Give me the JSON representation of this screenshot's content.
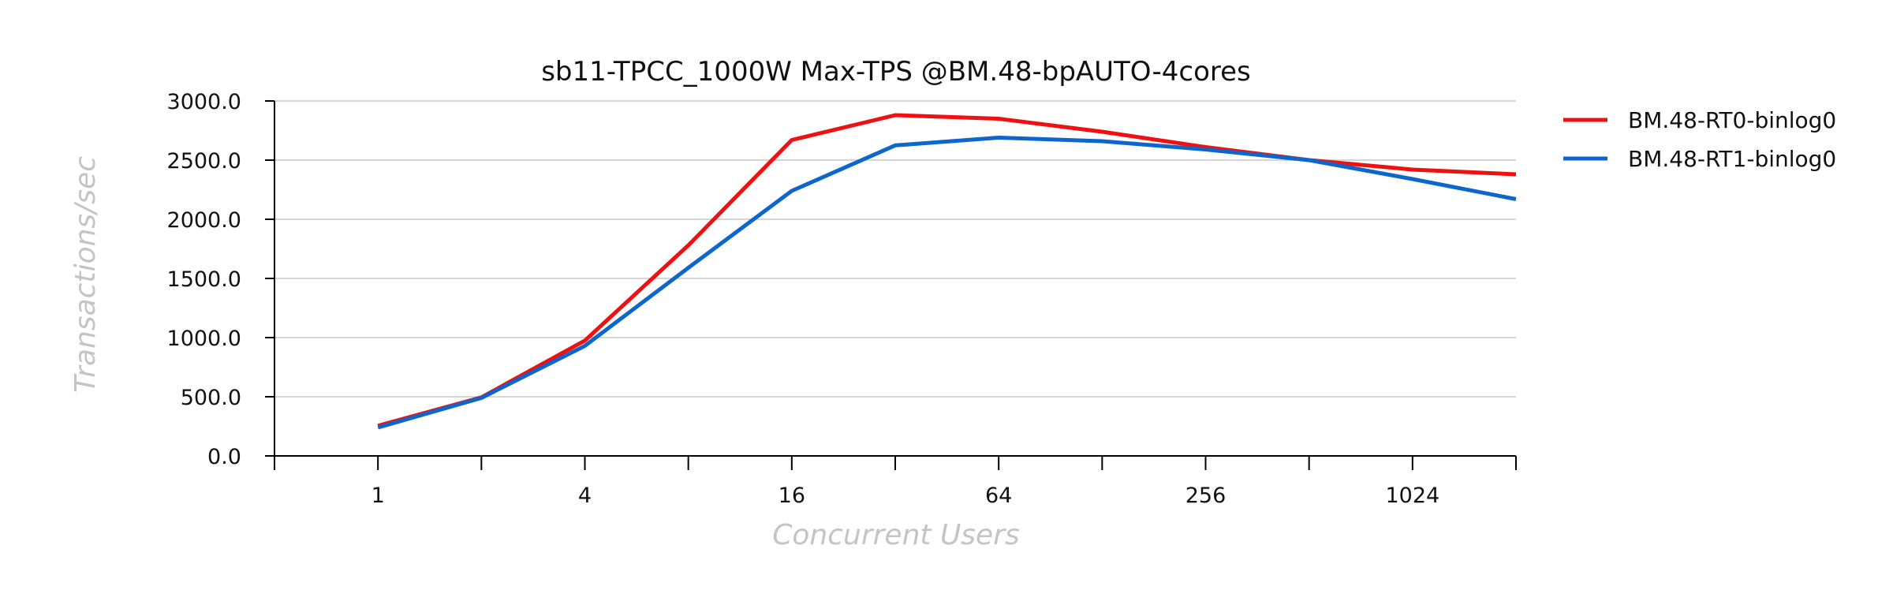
{
  "chart_data": {
    "type": "line",
    "title": "sb11-TPCC_1000W Max-TPS @BM.48-bpAUTO-4cores",
    "xlabel": "Concurrent Users",
    "ylabel": "Transactions/sec",
    "x_scale": "log2",
    "x": [
      1,
      2,
      4,
      8,
      16,
      32,
      64,
      128,
      256,
      512,
      1024,
      2048
    ],
    "x_tick_labels": [
      "1",
      "4",
      "16",
      "64",
      "256",
      "1024"
    ],
    "x_tick_label_values": [
      1,
      4,
      16,
      64,
      256,
      1024
    ],
    "ylim": [
      0,
      3000
    ],
    "y_ticks": [
      0,
      500,
      1000,
      1500,
      2000,
      2500,
      3000
    ],
    "y_tick_labels": [
      "0.0",
      "500.0",
      "1000.0",
      "1500.0",
      "2000.0",
      "2500.0",
      "3000.0"
    ],
    "grid": "horizontal",
    "legend_position": "right",
    "series": [
      {
        "name": "BM.48-RT0-binlog0",
        "color": "#ee1111",
        "values": [
          255,
          495,
          975,
          1780,
          2670,
          2880,
          2850,
          2740,
          2610,
          2500,
          2420,
          2380
        ]
      },
      {
        "name": "BM.48-RT1-binlog0",
        "color": "#0d66cc",
        "values": [
          240,
          490,
          930,
          1590,
          2240,
          2625,
          2690,
          2660,
          2590,
          2500,
          2340,
          2170
        ]
      }
    ]
  }
}
